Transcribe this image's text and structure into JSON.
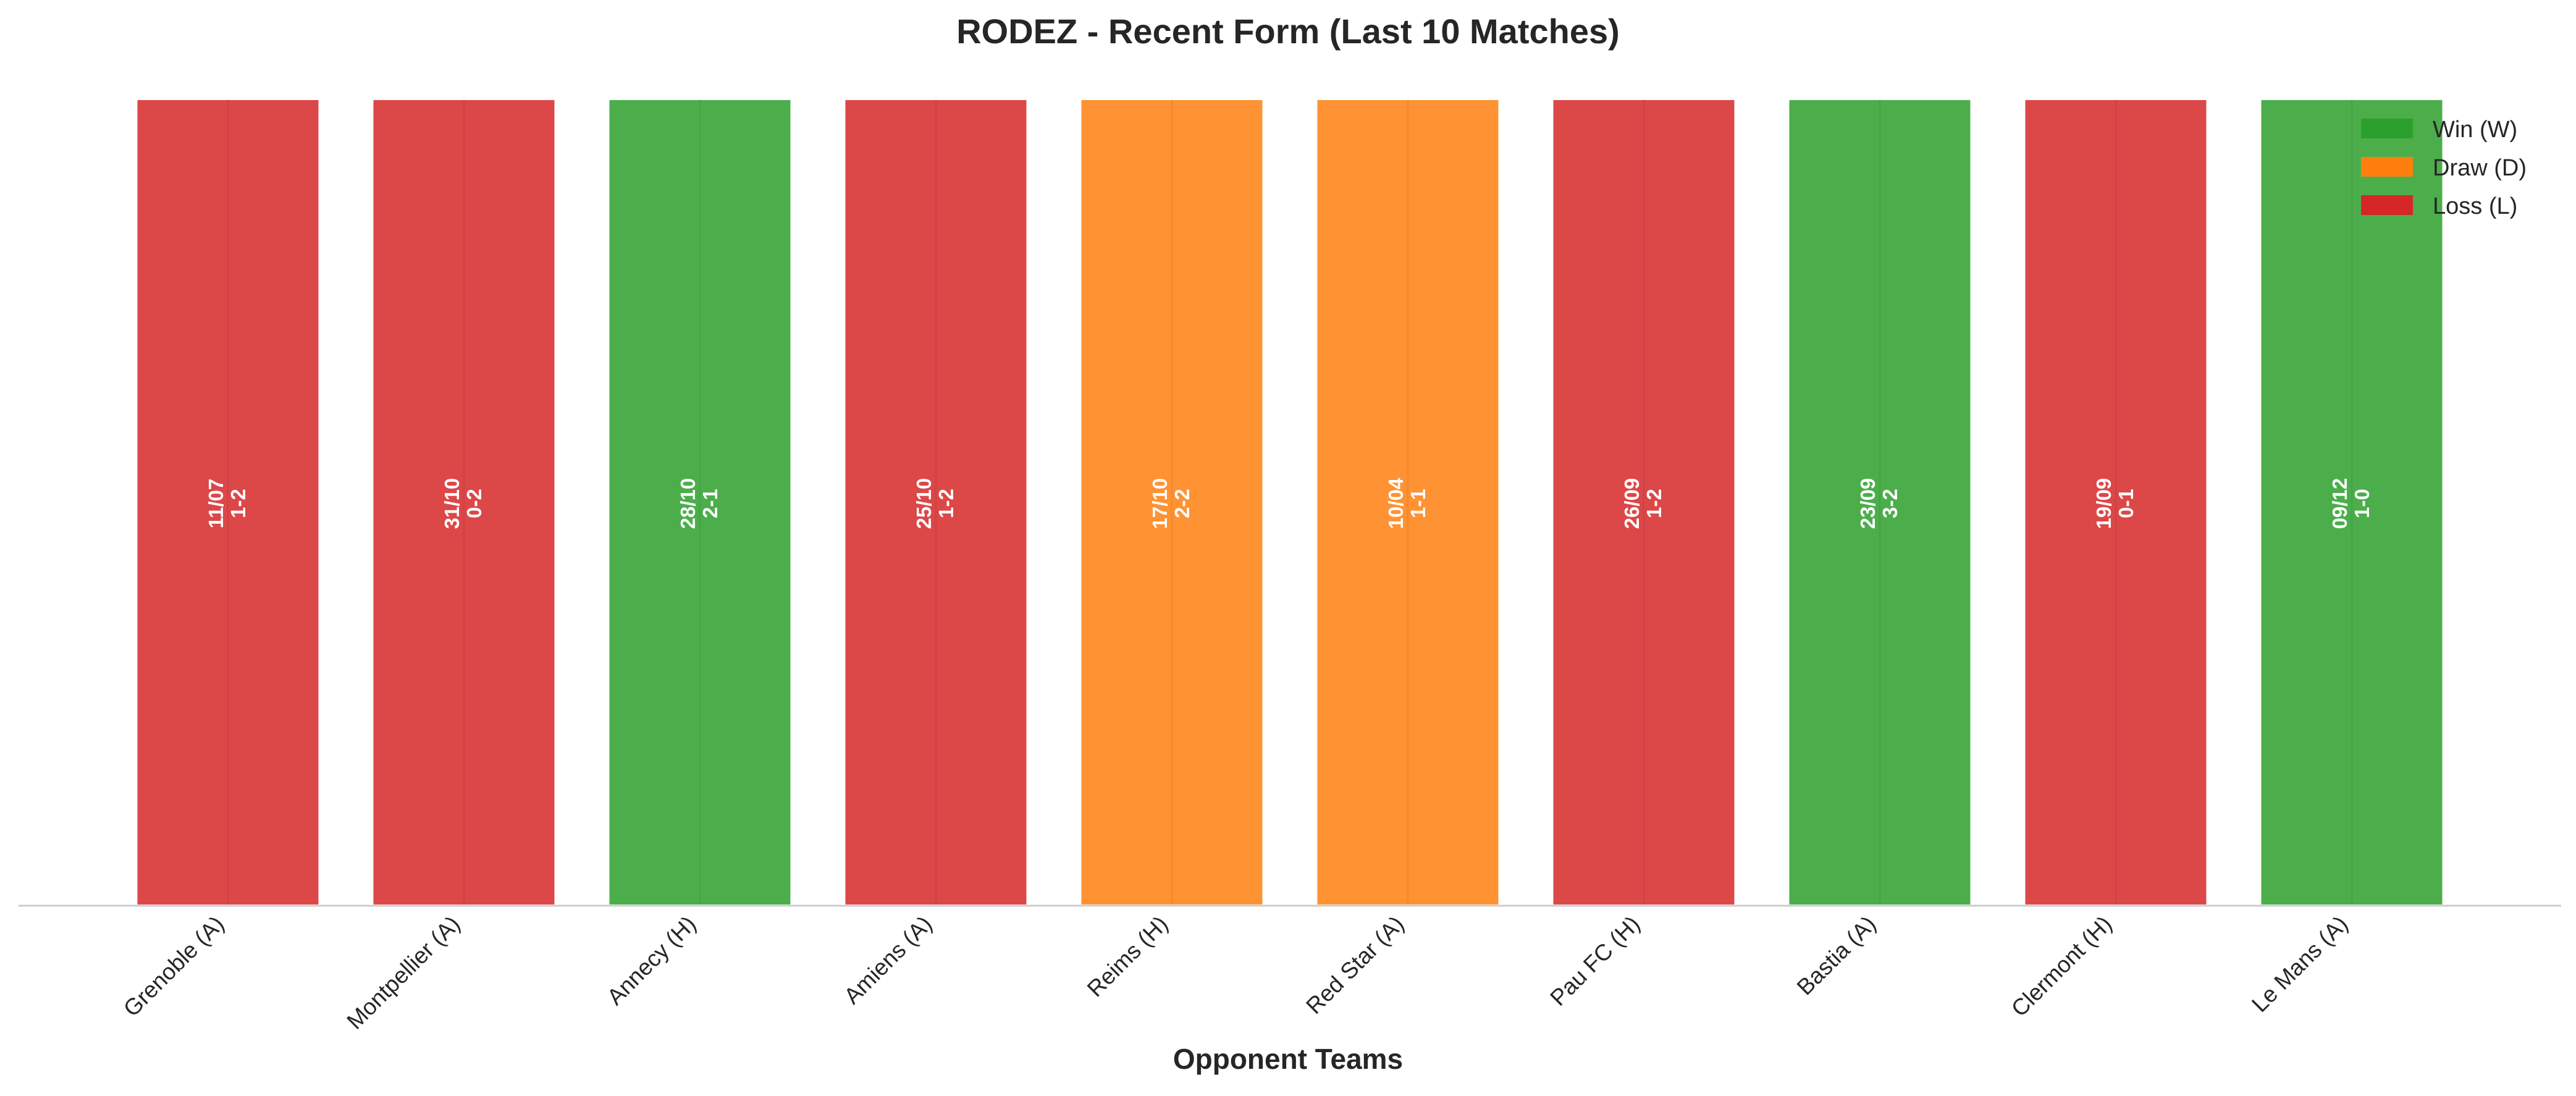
{
  "chart_data": {
    "type": "bar",
    "title": "RODEZ - Recent Form (Last 10 Matches)",
    "xlabel": "Opponent Teams",
    "ylabel": "",
    "ylim": [
      0,
      1
    ],
    "grid": false,
    "legend_position": "top-right",
    "categories": [
      "Grenoble (A)",
      "Montpellier (A)",
      "Annecy (H)",
      "Amiens (A)",
      "Reims (H)",
      "Red Star (A)",
      "Pau FC (H)",
      "Bastia (A)",
      "Clermont (H)",
      "Le Mans (A)"
    ],
    "values": [
      1,
      1,
      1,
      1,
      1,
      1,
      1,
      1,
      1,
      1
    ],
    "results": [
      "L",
      "L",
      "W",
      "L",
      "D",
      "D",
      "L",
      "W",
      "L",
      "W"
    ],
    "dates": [
      "11/07",
      "31/10",
      "28/10",
      "25/10",
      "17/10",
      "10/04",
      "26/09",
      "23/09",
      "19/09",
      "09/12"
    ],
    "scores": [
      "1-2",
      "0-2",
      "2-1",
      "1-2",
      "2-2",
      "1-1",
      "1-2",
      "3-2",
      "0-1",
      "1-0"
    ],
    "legend": [
      {
        "key": "W",
        "label": "Win (W)",
        "color": "#2ca02c"
      },
      {
        "key": "D",
        "label": "Draw (D)",
        "color": "#ff7f0e"
      },
      {
        "key": "L",
        "label": "Loss (L)",
        "color": "#d62728"
      }
    ],
    "colors": {
      "W": "#2ca02c",
      "D": "#ff7f0e",
      "L": "#d62728"
    }
  }
}
